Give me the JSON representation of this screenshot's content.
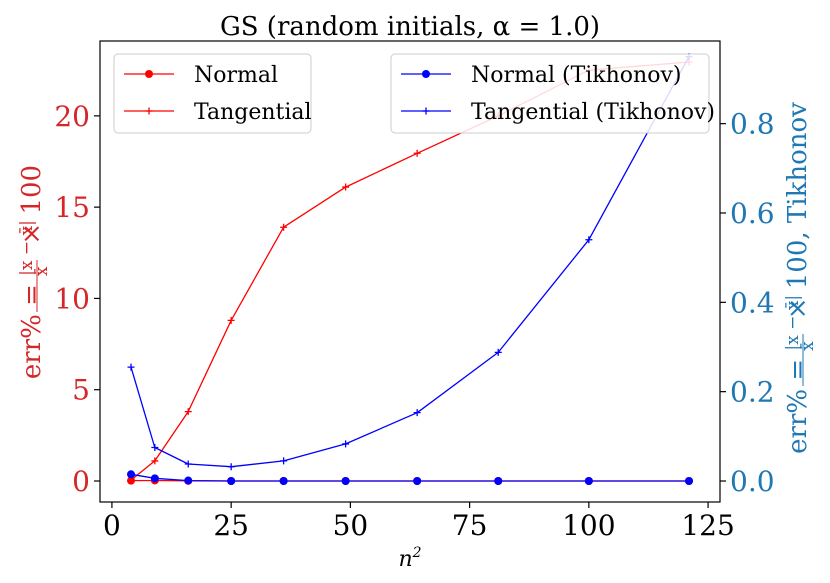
{
  "chart_data": {
    "type": "line",
    "title": "GS (random initials, α = 1.0)",
    "xlabel": "n²",
    "ylabel_left": "err% = |x − x̄| / x̄ × 100",
    "ylabel_right": "err% = |x − x̄| / x̄ × 100, Tikhonov",
    "x": [
      4,
      9,
      16,
      25,
      36,
      49,
      64,
      81,
      100,
      121
    ],
    "xlim": [
      -2.5,
      127.5
    ],
    "xticks": [
      0,
      25,
      50,
      75,
      100,
      125
    ],
    "y_left": {
      "lim": [
        -1.15,
        24.1
      ],
      "ticks": [
        0,
        5,
        10,
        15,
        20
      ],
      "tick_labels": [
        "0",
        "5",
        "10",
        "15",
        "20"
      ],
      "color": "#d62728"
    },
    "y_right": {
      "lim": [
        -0.047,
        0.985
      ],
      "ticks": [
        0.0,
        0.2,
        0.4,
        0.6,
        0.8
      ],
      "tick_labels": [
        "0.0",
        "0.2",
        "0.4",
        "0.6",
        "0.8"
      ],
      "color": "#1f77b4"
    },
    "series": [
      {
        "name": "Normal",
        "axis": "left",
        "color": "#ff0000",
        "marker": "circle",
        "values": [
          0.02,
          0.03,
          0.01,
          0.0,
          0.0,
          0.0,
          0.0,
          0.0,
          0.0,
          0.0
        ]
      },
      {
        "name": "Tangential",
        "axis": "left",
        "color": "#ff0000",
        "marker": "plus",
        "values": [
          0.05,
          1.1,
          3.8,
          8.8,
          13.9,
          16.1,
          17.95,
          20.0,
          22.5,
          22.95
        ]
      },
      {
        "name": "Normal (Tikhonov)",
        "axis": "right",
        "color": "#0000ff",
        "marker": "circle",
        "values": [
          0.015,
          0.006,
          0.001,
          0.0,
          0.0,
          0.0,
          0.0,
          0.0,
          0.0,
          0.0
        ]
      },
      {
        "name": "Tangential (Tikhonov)",
        "axis": "right",
        "color": "#0000ff",
        "marker": "plus",
        "values": [
          0.255,
          0.075,
          0.038,
          0.032,
          0.045,
          0.083,
          0.153,
          0.288,
          0.54,
          0.95
        ]
      }
    ],
    "legends": [
      {
        "placement": "top-left",
        "entries": [
          "Normal",
          "Tangential"
        ]
      },
      {
        "placement": "top-right",
        "entries": [
          "Normal (Tikhonov)",
          "Tangential (Tikhonov)"
        ]
      }
    ],
    "grid": false
  }
}
